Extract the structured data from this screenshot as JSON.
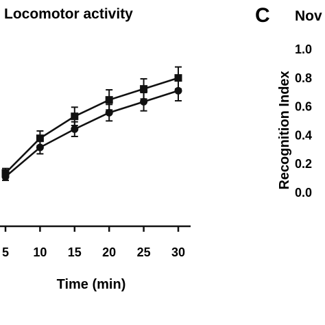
{
  "chart_data": [
    {
      "type": "line",
      "title": "Locomotor activity",
      "xlabel": "Time (min)",
      "ylabel": "",
      "x": [
        5,
        10,
        15,
        20,
        25,
        30
      ],
      "xtick_labels": [
        "5",
        "10",
        "15",
        "20",
        "25",
        "30"
      ],
      "series": [
        {
          "marker": "square",
          "values": [
            0.34,
            0.53,
            0.65,
            0.74,
            0.8,
            0.86
          ],
          "errors": [
            0.025,
            0.04,
            0.05,
            0.055,
            0.055,
            0.06
          ]
        },
        {
          "marker": "circle",
          "values": [
            0.32,
            0.48,
            0.58,
            0.67,
            0.73,
            0.79
          ],
          "errors": [
            0.02,
            0.035,
            0.04,
            0.045,
            0.05,
            0.055
          ]
        }
      ],
      "color": "#111111",
      "grid": false
    },
    {
      "type": "bar",
      "panel_label": "C",
      "title": "Nov",
      "ylabel": "Recognition Index",
      "ylim": [
        0.0,
        1.0
      ],
      "ytick_labels": [
        "1.0",
        "0.8",
        "0.6",
        "0.4",
        "0.2",
        "0.0"
      ]
    }
  ]
}
